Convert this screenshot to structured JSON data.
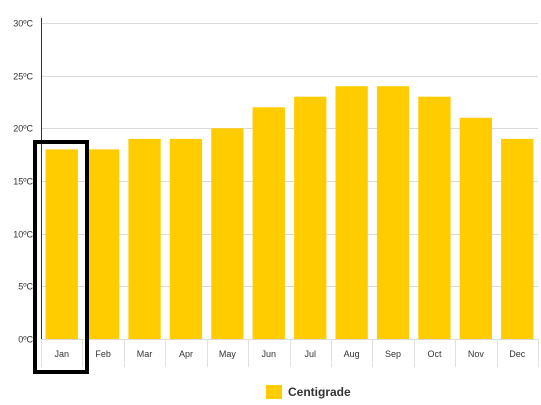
{
  "chart_data": {
    "type": "bar",
    "categories": [
      "Jan",
      "Feb",
      "Mar",
      "Apr",
      "May",
      "Jun",
      "Jul",
      "Aug",
      "Sep",
      "Oct",
      "Nov",
      "Dec"
    ],
    "series": [
      {
        "name": "Centigrade",
        "values": [
          18,
          18,
          19,
          19,
          20,
          22,
          23,
          24,
          24,
          23,
          21,
          19
        ],
        "color": "#FFCC00"
      }
    ],
    "ylim": [
      0,
      30
    ],
    "yticks": [
      "0ºC",
      "5ºC",
      "10ºC",
      "15ºC",
      "20ºC",
      "25ºC",
      "30ºC"
    ],
    "grid": true,
    "legend_position": "bottom-center",
    "highlighted_category": "Jan",
    "highlight_color": "#000000"
  }
}
